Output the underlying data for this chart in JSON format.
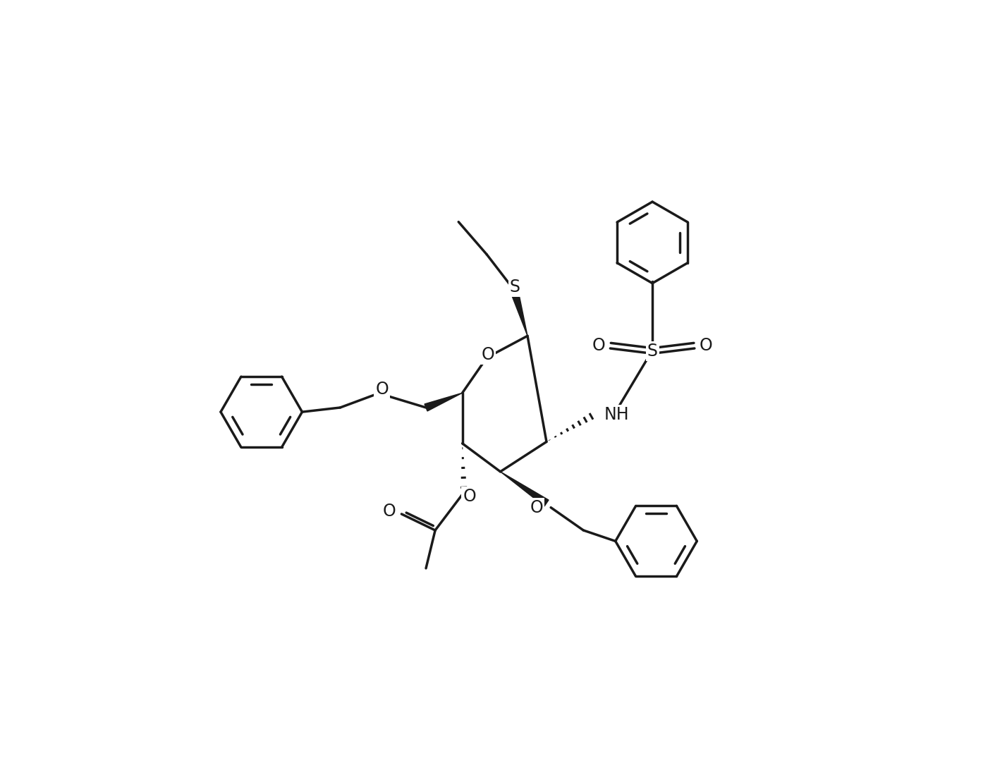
{
  "background_color": "#ffffff",
  "line_color": "#1a1a1a",
  "line_width": 2.5,
  "figsize": [
    14.28,
    10.82
  ],
  "dpi": 100,
  "title": "",
  "xlim": [
    0,
    1428
  ],
  "ylim": [
    0,
    1082
  ]
}
